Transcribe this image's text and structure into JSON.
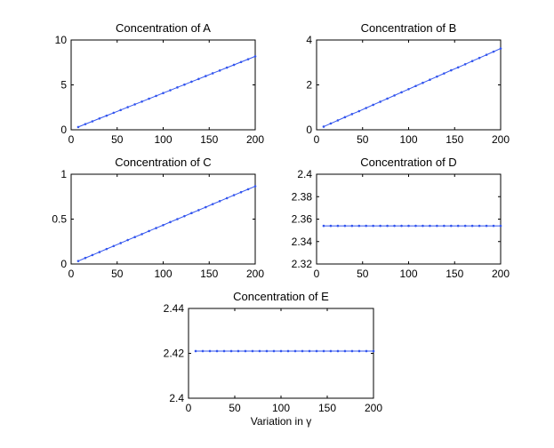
{
  "chart_data": [
    {
      "type": "line",
      "title": "Concentration of A",
      "xlabel": "",
      "ylabel": "",
      "xlim": [
        0,
        200
      ],
      "ylim": [
        0,
        10
      ],
      "xticks": [
        "0",
        "50",
        "100",
        "150",
        "200"
      ],
      "yticks": [
        "0",
        "5",
        "10"
      ],
      "grid": false,
      "legend": "none",
      "series": [
        {
          "color": "#3355ee",
          "marker": "dot",
          "x": [
            7.7,
            15.4,
            23.1,
            30.8,
            38.5,
            46.2,
            53.8,
            61.5,
            69.2,
            76.9,
            84.6,
            92.3,
            100,
            107.7,
            115.4,
            123.1,
            130.8,
            138.5,
            146.2,
            153.8,
            161.5,
            169.2,
            176.9,
            184.6,
            192.3,
            200
          ],
          "values": [
            0.31,
            0.63,
            0.94,
            1.26,
            1.57,
            1.89,
            2.2,
            2.52,
            2.83,
            3.14,
            3.46,
            3.77,
            4.09,
            4.4,
            4.72,
            5.03,
            5.35,
            5.66,
            5.98,
            6.29,
            6.6,
            6.92,
            7.23,
            7.55,
            7.86,
            8.18
          ]
        }
      ]
    },
    {
      "type": "line",
      "title": "Concentration of B",
      "xlabel": "",
      "ylabel": "",
      "xlim": [
        0,
        200
      ],
      "ylim": [
        0,
        4
      ],
      "xticks": [
        "0",
        "50",
        "100",
        "150",
        "200"
      ],
      "yticks": [
        "0",
        "2",
        "4"
      ],
      "grid": false,
      "legend": "none",
      "series": [
        {
          "color": "#3355ee",
          "marker": "dot",
          "x": [
            7.7,
            15.4,
            23.1,
            30.8,
            38.5,
            46.2,
            53.8,
            61.5,
            69.2,
            76.9,
            84.6,
            92.3,
            100,
            107.7,
            115.4,
            123.1,
            130.8,
            138.5,
            146.2,
            153.8,
            161.5,
            169.2,
            176.9,
            184.6,
            192.3,
            200
          ],
          "values": [
            0.14,
            0.28,
            0.42,
            0.56,
            0.7,
            0.83,
            0.97,
            1.11,
            1.25,
            1.39,
            1.53,
            1.67,
            1.81,
            1.95,
            2.09,
            2.23,
            2.37,
            2.51,
            2.65,
            2.78,
            2.92,
            3.06,
            3.2,
            3.34,
            3.48,
            3.62
          ]
        }
      ]
    },
    {
      "type": "line",
      "title": "Concentration of C",
      "xlabel": "",
      "ylabel": "",
      "xlim": [
        0,
        200
      ],
      "ylim": [
        0,
        1
      ],
      "xticks": [
        "0",
        "50",
        "100",
        "150",
        "200"
      ],
      "yticks": [
        "0",
        "0.5",
        "1"
      ],
      "grid": false,
      "legend": "none",
      "series": [
        {
          "color": "#3355ee",
          "marker": "dot",
          "x": [
            7.7,
            15.4,
            23.1,
            30.8,
            38.5,
            46.2,
            53.8,
            61.5,
            69.2,
            76.9,
            84.6,
            92.3,
            100,
            107.7,
            115.4,
            123.1,
            130.8,
            138.5,
            146.2,
            153.8,
            161.5,
            169.2,
            176.9,
            184.6,
            192.3,
            200
          ],
          "values": [
            0.033,
            0.067,
            0.1,
            0.133,
            0.167,
            0.2,
            0.233,
            0.267,
            0.3,
            0.333,
            0.367,
            0.4,
            0.433,
            0.467,
            0.5,
            0.533,
            0.567,
            0.6,
            0.633,
            0.667,
            0.7,
            0.733,
            0.767,
            0.8,
            0.833,
            0.866
          ]
        }
      ]
    },
    {
      "type": "line",
      "title": "Concentration of D",
      "xlabel": "",
      "ylabel": "",
      "xlim": [
        0,
        200
      ],
      "ylim": [
        2.32,
        2.4
      ],
      "xticks": [
        "0",
        "50",
        "100",
        "150",
        "200"
      ],
      "yticks": [
        "2.32",
        "2.34",
        "2.36",
        "2.38",
        "2.4"
      ],
      "grid": false,
      "legend": "none",
      "series": [
        {
          "color": "#3355ee",
          "marker": "dot",
          "x": [
            7.7,
            15.4,
            23.1,
            30.8,
            38.5,
            46.2,
            53.8,
            61.5,
            69.2,
            76.9,
            84.6,
            92.3,
            100,
            107.7,
            115.4,
            123.1,
            130.8,
            138.5,
            146.2,
            153.8,
            161.5,
            169.2,
            176.9,
            184.6,
            192.3,
            200
          ],
          "values": [
            2.354,
            2.354,
            2.354,
            2.354,
            2.354,
            2.354,
            2.354,
            2.354,
            2.354,
            2.354,
            2.354,
            2.354,
            2.354,
            2.354,
            2.354,
            2.354,
            2.354,
            2.354,
            2.354,
            2.354,
            2.354,
            2.354,
            2.354,
            2.354,
            2.354,
            2.354
          ]
        }
      ]
    },
    {
      "type": "line",
      "title": "Concentration of E",
      "xlabel": "Variation in γ",
      "ylabel": "",
      "xlim": [
        0,
        200
      ],
      "ylim": [
        2.4,
        2.44
      ],
      "xticks": [
        "0",
        "50",
        "100",
        "150",
        "200"
      ],
      "yticks": [
        "2.4",
        "2.42",
        "2.44"
      ],
      "grid": false,
      "legend": "none",
      "series": [
        {
          "color": "#3355ee",
          "marker": "dot",
          "x": [
            7.7,
            15.4,
            23.1,
            30.8,
            38.5,
            46.2,
            53.8,
            61.5,
            69.2,
            76.9,
            84.6,
            92.3,
            100,
            107.7,
            115.4,
            123.1,
            130.8,
            138.5,
            146.2,
            153.8,
            161.5,
            169.2,
            176.9,
            184.6,
            192.3,
            200
          ],
          "values": [
            2.421,
            2.421,
            2.421,
            2.421,
            2.421,
            2.421,
            2.421,
            2.421,
            2.421,
            2.421,
            2.421,
            2.421,
            2.421,
            2.421,
            2.421,
            2.421,
            2.421,
            2.421,
            2.421,
            2.421,
            2.421,
            2.421,
            2.421,
            2.421,
            2.421,
            2.421
          ]
        }
      ]
    }
  ]
}
